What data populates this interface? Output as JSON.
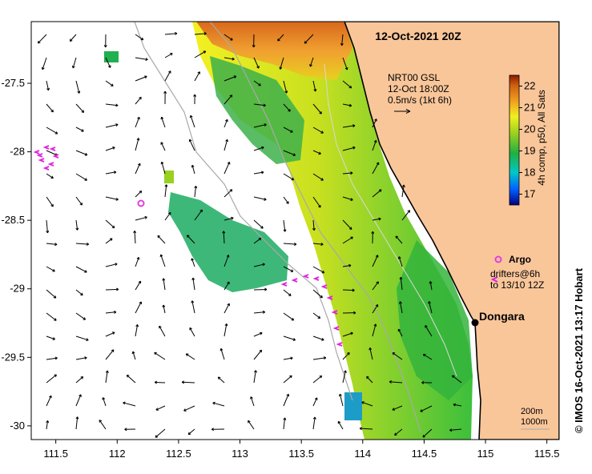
{
  "title": "12-Oct-2021 20Z",
  "product": {
    "line1": "NRT00 GSL",
    "line2": "12-Oct 18:00Z",
    "scale_label": "0.5m/s (1kt 6h)"
  },
  "colorbar": {
    "label": "4h comp, p50, All Sats",
    "ticks": [
      "17",
      "18",
      "19",
      "20",
      "21",
      "22"
    ],
    "min": 16.5,
    "max": 22.5
  },
  "legend": {
    "argo": "Argo",
    "drifters_line1": "drifters@6h",
    "drifters_line2": "to 13/10 12Z"
  },
  "place": {
    "name": "Dongara"
  },
  "isobaths": {
    "line1": "200m",
    "line2": "1000m"
  },
  "credit": "© IMOS 16-Oct-2021 13:17 Hobart",
  "axes": {
    "x_ticks": [
      "111.5",
      "112",
      "112.5",
      "113",
      "113.5",
      "114",
      "114.5",
      "115",
      "115.5"
    ],
    "y_ticks": [
      "-27.5",
      "-28",
      "-28.5",
      "-29",
      "-29.5",
      "-30"
    ],
    "lon_range": [
      111.3,
      115.6
    ],
    "lat_range": [
      -30.1,
      -27.05
    ]
  },
  "colors": {
    "land": "#f9c69a",
    "coast": "#000000",
    "isobath": "#a9a9a9",
    "argo": "#e040e0",
    "drifter": "#e020e0"
  }
}
